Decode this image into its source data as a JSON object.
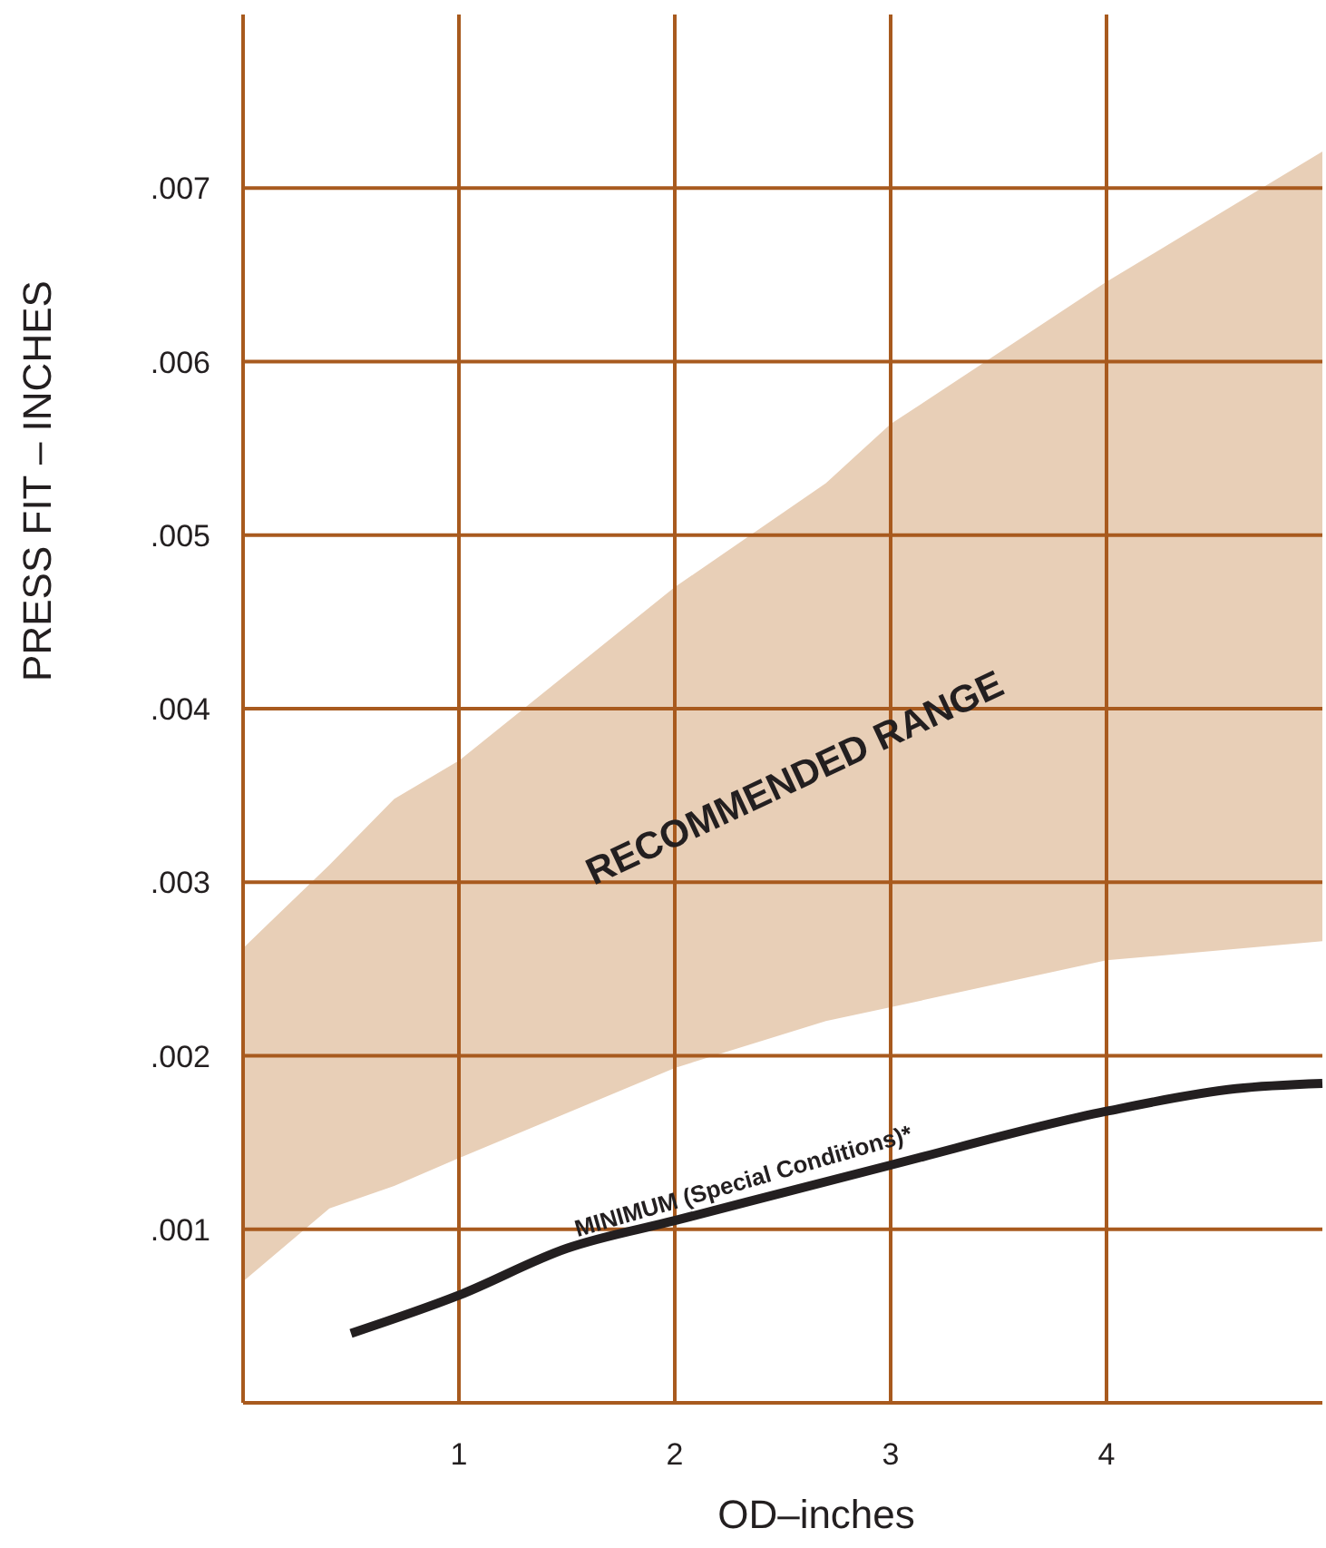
{
  "chart_data": {
    "type": "line",
    "xlabel": "OD–inches",
    "ylabel": "PRESS FIT – INCHES",
    "xlim": [
      0,
      5
    ],
    "xticks": [
      1,
      2,
      3,
      4
    ],
    "ylim": [
      0,
      0.008
    ],
    "yticks": [
      {
        "value": 0.001,
        "label": ".001"
      },
      {
        "value": 0.002,
        "label": ".002"
      },
      {
        "value": 0.003,
        "label": ".003"
      },
      {
        "value": 0.004,
        "label": ".004"
      },
      {
        "value": 0.005,
        "label": ".005"
      },
      {
        "value": 0.006,
        "label": ".006"
      },
      {
        "value": 0.007,
        "label": ".007"
      }
    ],
    "grid": true,
    "series": [
      {
        "color": "#e8cfb7",
        "x": [
          0,
          0.4,
          0.7,
          1,
          2,
          2.7,
          3,
          4,
          5
        ],
        "values": [
          null,
          null,
          null,
          null,
          null,
          null,
          null,
          null,
          null
        ],
        "upper": [
          0.00262,
          0.0031,
          0.00348,
          0.0037,
          0.0047,
          0.0053,
          0.00564,
          0.00646,
          0.00721
        ],
        "lower": [
          0.0007,
          0.00112,
          0.00125,
          0.00141,
          0.00193,
          0.0022,
          0.00228,
          0.00255,
          0.00266
        ]
      },
      {
        "type": "line",
        "color": "#231f20",
        "x": [
          0.5,
          1,
          1.5,
          2,
          3,
          4,
          4.6,
          5
        ],
        "values": [
          0.0004,
          0.00062,
          0.00089,
          0.00105,
          0.00137,
          0.00168,
          0.00181,
          0.00184
        ]
      }
    ],
    "annotations": [
      "RECOMMENDED RANGE",
      "MINIMUM (Special Conditions)*"
    ]
  }
}
